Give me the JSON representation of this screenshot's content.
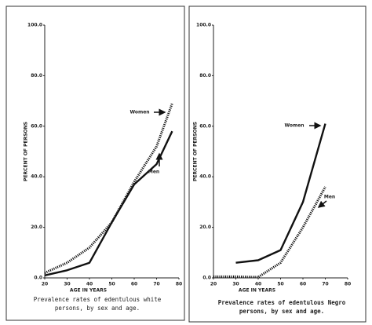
{
  "chart_data": [
    {
      "type": "line",
      "title": "Prevalence rates of edentulous white persons, by sex and age.",
      "x_label": "AGE IN YEARS",
      "y_label": "PERCENT OF PERSONS",
      "x": [
        20,
        30,
        40,
        50,
        60,
        70,
        77
      ],
      "series": [
        {
          "name": "Women",
          "color": "#111111",
          "style": "dotted",
          "values": [
            2,
            6,
            12,
            22,
            38,
            52,
            69
          ]
        },
        {
          "name": "Men",
          "color": "#111111",
          "style": "solid",
          "values": [
            1,
            3,
            6,
            22,
            37,
            45,
            58
          ]
        }
      ],
      "xlim": [
        20,
        80
      ],
      "xticks": [
        20,
        30,
        40,
        50,
        60,
        70,
        80
      ],
      "ylim": [
        0,
        100
      ],
      "yticks": [
        {
          "value": 0,
          "label": "0.0"
        },
        {
          "value": 20,
          "label": "20.0"
        },
        {
          "value": 40,
          "label": "40.0"
        },
        {
          "value": 60,
          "label": "60.0"
        },
        {
          "value": 80,
          "label": "80.0"
        },
        {
          "value": 100,
          "label": "100.0"
        }
      ],
      "grid": false
    },
    {
      "type": "line",
      "title": "Prevalence rates of edentulous Negro persons, by sex and age.",
      "x_label": "AGE IN YEARS",
      "y_label": "PERCENT OF PERSONS",
      "x": [
        20,
        30,
        40,
        50,
        60,
        70
      ],
      "series": [
        {
          "name": "Women",
          "color": "#111111",
          "style": "solid",
          "values": [
            null,
            6,
            7,
            11,
            30,
            61
          ]
        },
        {
          "name": "Men",
          "color": "#111111",
          "style": "dotted",
          "values": [
            0.5,
            0.5,
            0.3,
            6,
            20,
            36
          ]
        }
      ],
      "xlim": [
        20,
        80
      ],
      "xticks": [
        20,
        30,
        40,
        50,
        60,
        70,
        80
      ],
      "ylim": [
        0,
        100
      ],
      "yticks": [
        {
          "value": 0,
          "label": "0.0"
        },
        {
          "value": 20,
          "label": "20.0"
        },
        {
          "value": 40,
          "label": "40.0"
        },
        {
          "value": 60,
          "label": "60.0"
        },
        {
          "value": 80,
          "label": "80.0"
        },
        {
          "value": 100,
          "label": "100.0"
        }
      ],
      "grid": false
    }
  ]
}
